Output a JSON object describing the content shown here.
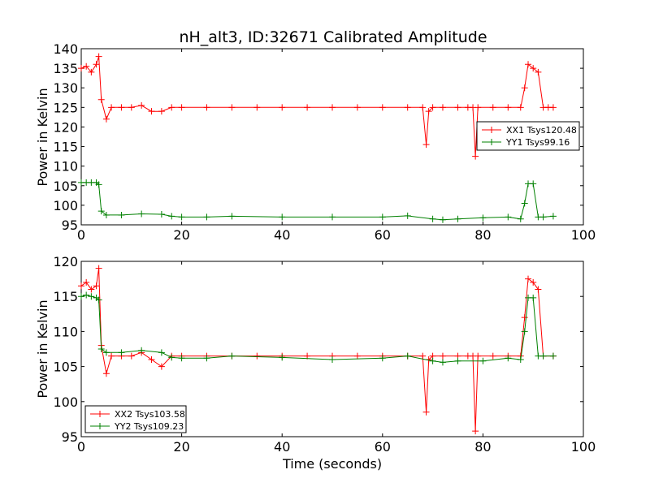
{
  "chart_data": [
    {
      "type": "line",
      "title": "nH_alt3, ID:32671 Calibrated Amplitude",
      "xlabel": "",
      "ylabel": "Power in Kelvin",
      "xlim": [
        0,
        100
      ],
      "ylim": [
        95,
        140
      ],
      "xticks": [
        0,
        20,
        40,
        60,
        80,
        100
      ],
      "yticks": [
        95,
        100,
        105,
        110,
        115,
        120,
        125,
        130,
        135,
        140
      ],
      "legend_position": "center-right",
      "marker": "+",
      "series": [
        {
          "name": "XX1 Tsys120.48",
          "color": "#ff0000",
          "x": [
            0,
            1,
            2,
            3,
            3.5,
            4,
            5,
            6,
            8,
            10,
            12,
            14,
            16,
            18,
            20,
            25,
            30,
            35,
            40,
            45,
            50,
            55,
            60,
            65,
            68,
            68.7,
            69.2,
            70,
            72,
            75,
            77,
            78,
            78.5,
            79,
            82,
            85,
            87.5,
            88.3,
            89,
            90,
            91,
            92,
            93,
            94
          ],
          "y": [
            135,
            135.5,
            134,
            136,
            138,
            127,
            122,
            125,
            125,
            125,
            125.5,
            124,
            124,
            125,
            125,
            125,
            125,
            125,
            125,
            125,
            125,
            125,
            125,
            125,
            125,
            115.5,
            124,
            125,
            125,
            125,
            125,
            125,
            112.5,
            125,
            125,
            125,
            125,
            130,
            136,
            135,
            134,
            125,
            125,
            125
          ]
        },
        {
          "name": "YY1 Tsys99.16",
          "color": "#008000",
          "x": [
            0,
            1,
            2,
            3,
            3.5,
            4,
            5,
            8,
            12,
            16,
            18,
            20,
            25,
            30,
            40,
            50,
            60,
            65,
            70,
            72,
            75,
            80,
            85,
            87.5,
            88.3,
            89,
            90,
            91,
            92,
            94
          ],
          "y": [
            105.8,
            105.8,
            105.8,
            105.8,
            105.3,
            98.5,
            97.5,
            97.5,
            97.8,
            97.7,
            97.2,
            97,
            97,
            97.2,
            97,
            97,
            97,
            97.3,
            96.5,
            96.3,
            96.5,
            96.8,
            97,
            96.5,
            100.5,
            105.5,
            105.5,
            97,
            97,
            97.2
          ]
        }
      ]
    },
    {
      "type": "line",
      "title": "",
      "xlabel": "Time (seconds)",
      "ylabel": "Power in Kelvin",
      "xlim": [
        0,
        100
      ],
      "ylim": [
        95,
        120
      ],
      "xticks": [
        0,
        20,
        40,
        60,
        80,
        100
      ],
      "yticks": [
        95,
        100,
        105,
        110,
        115,
        120
      ],
      "legend_position": "bottom-left",
      "marker": "+",
      "series": [
        {
          "name": "XX2 Tsys103.58",
          "color": "#ff0000",
          "x": [
            0,
            1,
            2,
            3,
            3.5,
            4,
            5,
            6,
            8,
            10,
            12,
            14,
            16,
            18,
            20,
            25,
            30,
            35,
            40,
            45,
            50,
            55,
            60,
            65,
            68,
            68.7,
            69.2,
            70,
            72,
            75,
            77,
            78,
            78.5,
            79,
            82,
            85,
            87.5,
            88.3,
            89,
            90,
            91,
            92,
            94
          ],
          "y": [
            116.5,
            117,
            116,
            116.5,
            119,
            108,
            104,
            106.5,
            106.5,
            106.5,
            107,
            106,
            105,
            106.5,
            106.5,
            106.5,
            106.5,
            106.5,
            106.5,
            106.5,
            106.5,
            106.5,
            106.5,
            106.5,
            106.5,
            98.5,
            106,
            106.5,
            106.5,
            106.5,
            106.5,
            106.5,
            95.8,
            106.5,
            106.5,
            106.5,
            106.5,
            112,
            117.5,
            117,
            116,
            106.5,
            106.5
          ]
        },
        {
          "name": "YY2 Tsys109.23",
          "color": "#008000",
          "x": [
            0,
            1,
            2,
            3,
            3.5,
            4,
            5,
            8,
            12,
            16,
            18,
            20,
            25,
            30,
            40,
            50,
            60,
            65,
            70,
            72,
            75,
            80,
            85,
            87.5,
            88.3,
            89,
            90,
            91,
            92,
            94
          ],
          "y": [
            115,
            115.2,
            115,
            114.8,
            114.5,
            107.5,
            107,
            107,
            107.3,
            107,
            106.3,
            106.2,
            106.2,
            106.5,
            106.3,
            106,
            106.2,
            106.5,
            105.8,
            105.6,
            105.8,
            105.8,
            106.2,
            106,
            110,
            114.8,
            114.8,
            106.5,
            106.5,
            106.5
          ]
        }
      ]
    }
  ]
}
